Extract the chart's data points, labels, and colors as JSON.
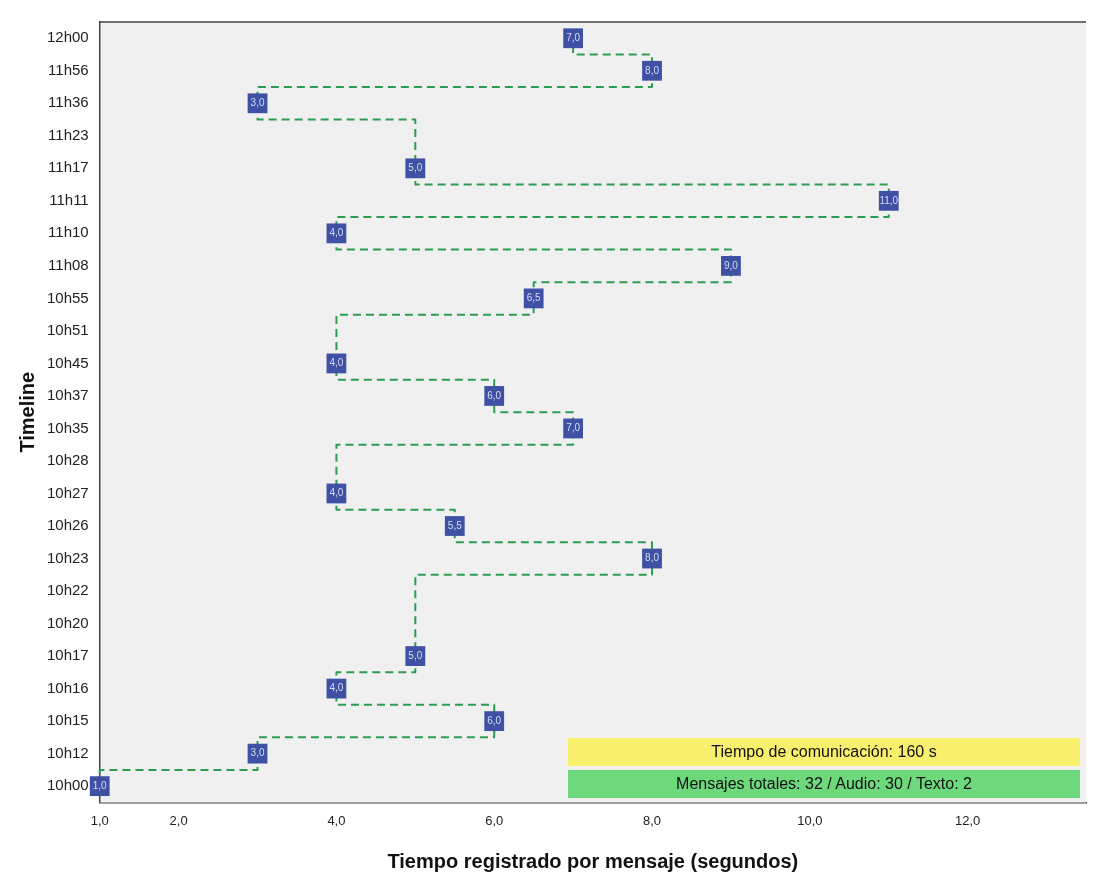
{
  "chart_data": {
    "type": "step",
    "orientation": "horizontal",
    "xlabel": "Tiempo registrado por mensaje (segundos)",
    "ylabel": "Timeline",
    "categories": [
      "12h00",
      "11h56",
      "11h36",
      "11h23",
      "11h17",
      "11h11",
      "11h10",
      "11h08",
      "10h55",
      "10h51",
      "10h45",
      "10h37",
      "10h35",
      "10h28",
      "10h27",
      "10h26",
      "10h23",
      "10h22",
      "10h20",
      "10h17",
      "10h16",
      "10h15",
      "10h12",
      "10h00"
    ],
    "series": [
      {
        "color": "#3f51a5",
        "values": [
          7,
          8,
          3,
          5,
          5,
          11,
          4,
          9,
          6.5,
          4,
          4,
          6,
          7,
          4,
          4,
          5.5,
          8,
          5,
          5,
          5,
          4,
          6,
          3,
          1
        ],
        "value_labels": [
          "7,0",
          "8,0",
          "3,0",
          null,
          "5,0",
          "11,0",
          "4,0",
          "9,0",
          "6,5",
          null,
          "4,0",
          "6,0",
          "7,0",
          null,
          "4,0",
          "5,5",
          "8,0",
          null,
          null,
          "5,0",
          "4,0",
          "6,0",
          "3,0",
          "1,0"
        ]
      }
    ],
    "xlim": [
      1,
      13.5
    ],
    "xticks": [
      {
        "value": 1,
        "label": "1,0"
      },
      {
        "value": 2,
        "label": "2,0"
      },
      {
        "value": 4,
        "label": "4,0"
      },
      {
        "value": 6,
        "label": "6,0"
      },
      {
        "value": 8,
        "label": "8,0"
      },
      {
        "value": 10,
        "label": "10,0"
      },
      {
        "value": 12,
        "label": "12,0"
      }
    ],
    "marker": "square",
    "line_style": "dashed",
    "grid": false,
    "legend": false,
    "annotations": [
      "Tiempo de comunicación: 160 s",
      "Mensajes totales: 32 / Audio: 30 / Texto: 2"
    ]
  }
}
